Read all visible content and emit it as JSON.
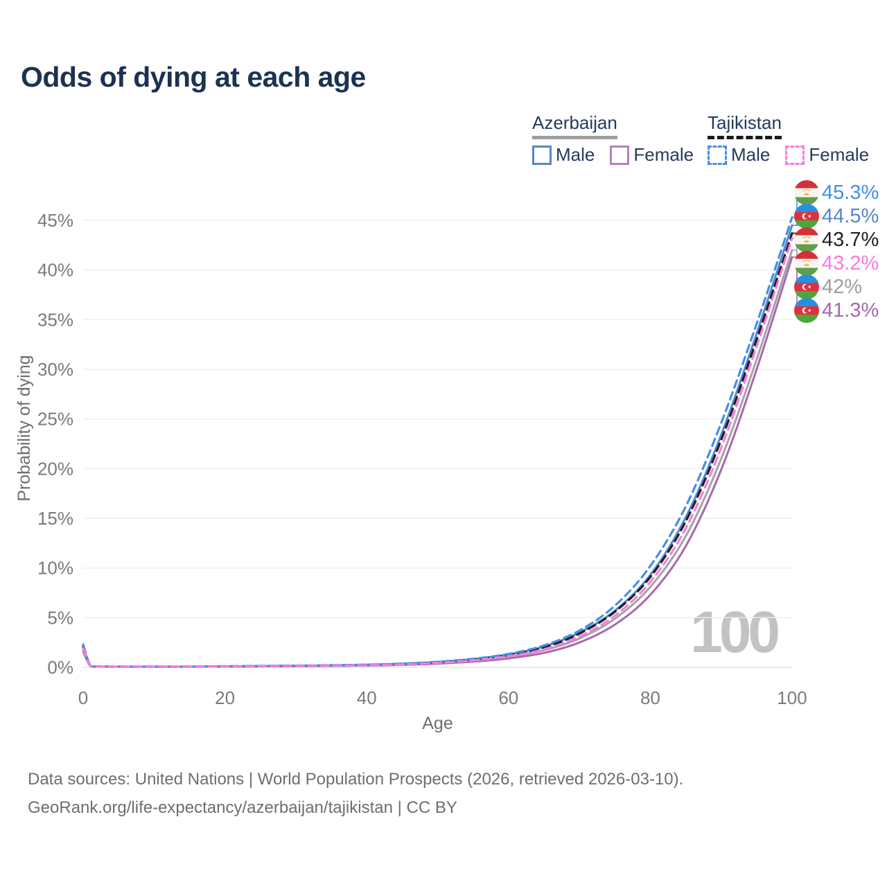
{
  "title": "Odds of dying at each age",
  "legend": {
    "groups": [
      {
        "country": "Azerbaijan",
        "line_style": "solid",
        "underline_color": "#9e9e9e",
        "items": [
          {
            "label": "Male",
            "color": "#5585c6",
            "dashed": false
          },
          {
            "label": "Female",
            "color": "#b57fc0",
            "dashed": false
          }
        ]
      },
      {
        "country": "Tajikistan",
        "line_style": "dashed",
        "underline_color": "#1a1a1a",
        "items": [
          {
            "label": "Male",
            "color": "#4190e8",
            "dashed": true
          },
          {
            "label": "Female",
            "color": "#fb79e1",
            "dashed": true
          }
        ]
      }
    ]
  },
  "watermark_age": "100",
  "footer": {
    "line1": "Data sources: United Nations | World Population Prospects (2026, retrieved 2026-03-10).",
    "line2": "GeoRank.org/life-expectancy/azerbaijan/tajikistan | CC BY"
  },
  "chart_data": {
    "type": "line",
    "title": "Odds of dying at each age",
    "xlabel": "Age",
    "ylabel": "Probability of dying",
    "x_ticks": [
      0,
      20,
      40,
      60,
      80,
      100
    ],
    "y_ticks_pct": [
      0,
      5,
      10,
      15,
      20,
      25,
      30,
      35,
      40,
      45
    ],
    "xlim": [
      0,
      100
    ],
    "ylim_pct": [
      0,
      47
    ],
    "grid": "horizontal-only",
    "legend_position": "top-right",
    "ages": [
      0,
      1,
      2,
      3,
      5,
      10,
      15,
      20,
      25,
      30,
      35,
      40,
      45,
      50,
      55,
      60,
      65,
      70,
      75,
      80,
      85,
      90,
      95,
      100
    ],
    "series": [
      {
        "id": "az_female",
        "name": "Azerbaijan Female",
        "country": "Azerbaijan",
        "flag": "az",
        "color": "#a867b0",
        "label_color": "#a867b0",
        "dashed": false,
        "end_label": "41.3%",
        "values": [
          1.6,
          0.13,
          0.07,
          0.05,
          0.04,
          0.04,
          0.05,
          0.07,
          0.09,
          0.11,
          0.14,
          0.18,
          0.25,
          0.37,
          0.57,
          0.9,
          1.45,
          2.5,
          4.3,
          7.3,
          12.2,
          19.9,
          30.0,
          41.3
        ]
      },
      {
        "id": "az_total",
        "name": "Azerbaijan",
        "country": "Azerbaijan",
        "flag": "az",
        "color": "#a3a3a3",
        "label_color": "#9e9e9e",
        "dashed": false,
        "end_label": "42%",
        "values": [
          1.8,
          0.15,
          0.08,
          0.06,
          0.05,
          0.04,
          0.05,
          0.08,
          0.11,
          0.13,
          0.16,
          0.21,
          0.3,
          0.44,
          0.68,
          1.06,
          1.72,
          2.9,
          4.9,
          8.1,
          13.2,
          21.0,
          31.0,
          42.0
        ]
      },
      {
        "id": "az_male",
        "name": "Azerbaijan Male",
        "country": "Azerbaijan",
        "flag": "az",
        "color": "#5585c6",
        "label_color": "#5585c6",
        "dashed": false,
        "end_label": "44.5%",
        "values": [
          2.0,
          0.17,
          0.09,
          0.07,
          0.05,
          0.05,
          0.07,
          0.1,
          0.13,
          0.16,
          0.2,
          0.26,
          0.36,
          0.54,
          0.83,
          1.3,
          2.1,
          3.5,
          5.7,
          9.3,
          15.1,
          23.4,
          33.6,
          44.5
        ]
      },
      {
        "id": "tj_total",
        "name": "Tajikistan",
        "country": "Tajikistan",
        "flag": "tj",
        "color": "#1f1f1f",
        "label_color": "#1f1f1f",
        "dashed": true,
        "end_label": "43.7%",
        "values": [
          2.1,
          0.18,
          0.09,
          0.07,
          0.05,
          0.05,
          0.06,
          0.09,
          0.12,
          0.15,
          0.19,
          0.25,
          0.34,
          0.5,
          0.78,
          1.25,
          2.0,
          3.4,
          5.6,
          9.1,
          14.7,
          22.9,
          33.0,
          43.7
        ]
      },
      {
        "id": "tj_male",
        "name": "Tajikistan Male",
        "country": "Tajikistan",
        "flag": "tj",
        "color": "#4190e8",
        "label_color": "#4190e8",
        "dashed": true,
        "end_label": "45.3%",
        "values": [
          2.3,
          0.2,
          0.1,
          0.08,
          0.06,
          0.05,
          0.07,
          0.11,
          0.14,
          0.17,
          0.21,
          0.27,
          0.38,
          0.56,
          0.86,
          1.35,
          2.2,
          3.7,
          6.2,
          10.2,
          16.2,
          24.6,
          34.6,
          45.3
        ]
      },
      {
        "id": "tj_female",
        "name": "Tajikistan Female",
        "country": "Tajikistan",
        "flag": "tj",
        "color": "#fb79e1",
        "label_color": "#fb79e1",
        "dashed": true,
        "end_label": "43.2%",
        "values": [
          1.9,
          0.16,
          0.08,
          0.06,
          0.05,
          0.04,
          0.05,
          0.08,
          0.1,
          0.13,
          0.17,
          0.22,
          0.3,
          0.45,
          0.7,
          1.12,
          1.82,
          3.1,
          5.2,
          8.6,
          14.0,
          22.1,
          32.3,
          43.2
        ]
      }
    ],
    "end_label_order": [
      "tj_male",
      "az_male",
      "tj_total",
      "tj_female",
      "az_total",
      "az_female"
    ]
  }
}
